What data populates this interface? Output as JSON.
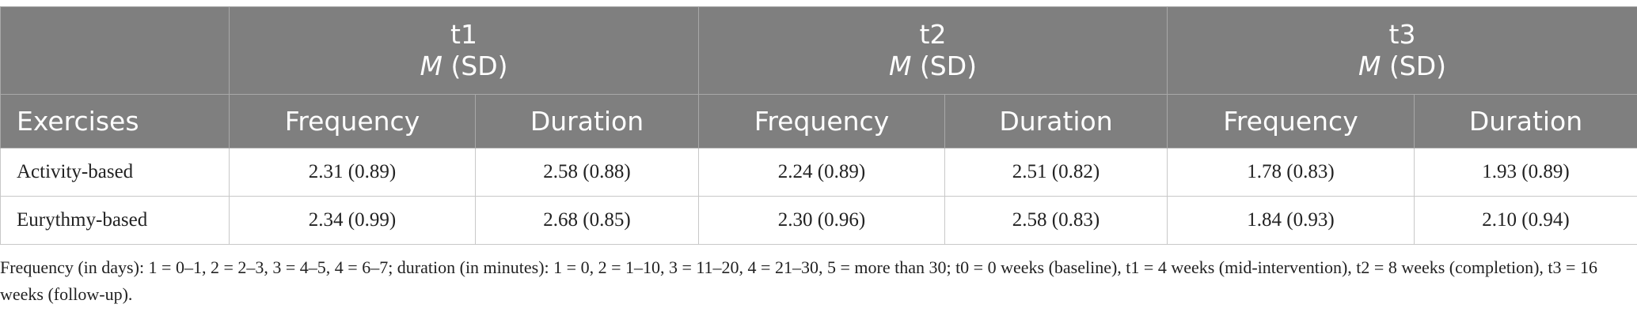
{
  "table": {
    "groups": [
      {
        "label": "t1",
        "stat_italic": "M",
        "stat": "(SD)"
      },
      {
        "label": "t2",
        "stat_italic": "M",
        "stat": "(SD)"
      },
      {
        "label": "t3",
        "stat_italic": "M",
        "stat": "(SD)"
      }
    ],
    "columns": [
      "Exercises",
      "Frequency",
      "Duration",
      "Frequency",
      "Duration",
      "Frequency",
      "Duration"
    ],
    "rows": [
      [
        "Activity-based",
        "2.31 (0.89)",
        "2.58 (0.88)",
        "2.24 (0.89)",
        "2.51 (0.82)",
        "1.78 (0.83)",
        "1.93 (0.89)"
      ],
      [
        "Eurythmy-based",
        "2.34 (0.99)",
        "2.68 (0.85)",
        "2.30 (0.96)",
        "2.58 (0.83)",
        "1.84 (0.93)",
        "2.10 (0.94)"
      ]
    ],
    "footnote": "Frequency (in days): 1 = 0–1, 2 = 2–3, 3 = 4–5, 4 = 6–7; duration (in minutes): 1 = 0, 2 = 1–10, 3 = 11–20, 4 = 21–30, 5 = more than 30; t0 = 0 weeks (baseline), t1 = 4 weeks (mid-intervention), t2 = 8 weeks (completion), t3 = 16 weeks (follow-up)."
  }
}
